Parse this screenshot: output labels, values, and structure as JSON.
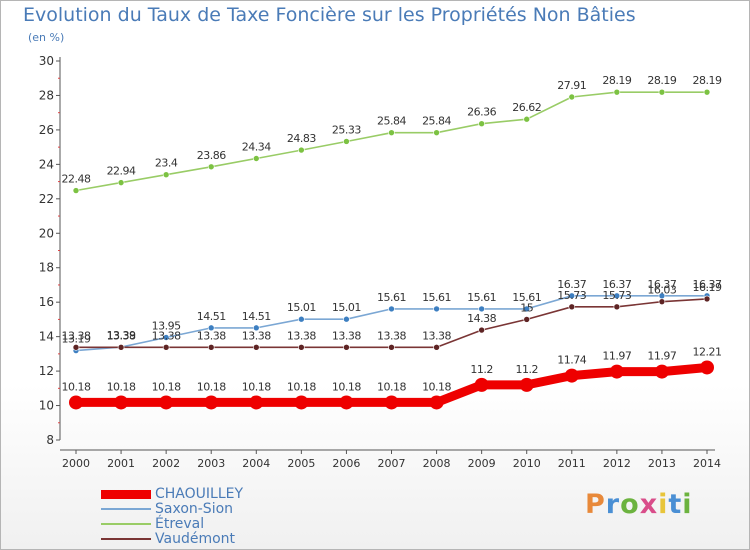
{
  "chart_data": {
    "type": "line",
    "title": "Evolution du Taux de Taxe Foncière sur les Propriétés Non Bâties",
    "ylabel": "(en %)",
    "xlabel": "",
    "ylim": [
      8,
      30
    ],
    "yticks": [
      8,
      10,
      12,
      14,
      16,
      18,
      20,
      22,
      24,
      26,
      28,
      30
    ],
    "grid": false,
    "legend_position": "bottom-left",
    "x": [
      "2000",
      "2001",
      "2002",
      "2003",
      "2004",
      "2005",
      "2006",
      "2007",
      "2008",
      "2009",
      "2010",
      "2011",
      "2012",
      "2013",
      "2014"
    ],
    "series": [
      {
        "name": "Étreval",
        "color": "#99cc66",
        "marker_color": "#7cc242",
        "values": [
          22.48,
          22.94,
          23.4,
          23.86,
          24.34,
          24.83,
          25.33,
          25.84,
          25.84,
          26.36,
          26.62,
          27.91,
          28.19,
          28.19,
          28.19
        ],
        "labels": [
          "22.48",
          "22.94",
          "23.4",
          "23.86",
          "24.34",
          "24.83",
          "25.33",
          "25.84",
          "25.84",
          "26.36",
          "26.62",
          "27.91",
          "28.19",
          "28.19",
          "28.19"
        ]
      },
      {
        "name": "Saxon-Sion",
        "color": "#7ba7d4",
        "marker_color": "#3d7fc1",
        "values": [
          13.19,
          13.39,
          13.95,
          14.51,
          14.51,
          15.01,
          15.01,
          15.61,
          15.61,
          15.61,
          15.61,
          16.37,
          16.37,
          16.37,
          16.37
        ],
        "labels": [
          "13.19",
          "13.39",
          "13.95",
          "14.51",
          "14.51",
          "15.01",
          "15.01",
          "15.61",
          "15.61",
          "15.61",
          "15.61",
          "16.37",
          "16.37",
          "16.37",
          "16.37"
        ]
      },
      {
        "name": "Vaudémont",
        "color": "#7a3535",
        "marker_color": "#5e2424",
        "values": [
          13.38,
          13.38,
          13.38,
          13.38,
          13.38,
          13.38,
          13.38,
          13.38,
          13.38,
          14.38,
          15,
          15.73,
          15.73,
          16.03,
          16.19
        ],
        "labels": [
          "13.38",
          "13.38",
          "13.38",
          "13.38",
          "13.38",
          "13.38",
          "13.38",
          "13.38",
          "13.38",
          "14.38",
          "15",
          "15.73",
          "15.73",
          "16.03",
          "16.19"
        ]
      },
      {
        "name": "CHAOUILLEY",
        "color": "#ee0000",
        "marker_color": "#ee0000",
        "values": [
          10.18,
          10.18,
          10.18,
          10.18,
          10.18,
          10.18,
          10.18,
          10.18,
          10.18,
          11.2,
          11.2,
          11.74,
          11.97,
          11.97,
          12.21
        ],
        "labels": [
          "10.18",
          "10.18",
          "10.18",
          "10.18",
          "10.18",
          "10.18",
          "10.18",
          "10.18",
          "10.18",
          "11.2",
          "11.2",
          "11.74",
          "11.97",
          "11.97",
          "12.21"
        ]
      }
    ],
    "legend": [
      "CHAOUILLEY",
      "Saxon-Sion",
      "Étreval",
      "Vaudémont"
    ]
  },
  "branding": {
    "logo_letters": [
      "P",
      "r",
      "o",
      "x",
      "i",
      "t",
      "i"
    ],
    "logo_colors": [
      "#e8893a",
      "#4a8fd4",
      "#6cb33f",
      "#d94d8a",
      "#e8c53a",
      "#4a8fd4",
      "#6cb33f"
    ]
  }
}
